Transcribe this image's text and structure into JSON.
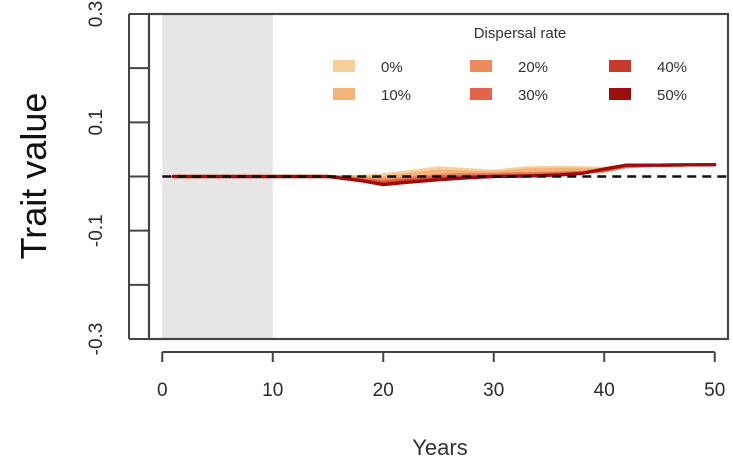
{
  "chart_data": {
    "type": "line",
    "title": "",
    "xlabel": "Years",
    "ylabel": "Trait value",
    "xlim": [
      -1.2,
      51.2
    ],
    "ylim": [
      -0.3,
      0.3
    ],
    "x_ticks": [
      0,
      10,
      20,
      30,
      40,
      50
    ],
    "y_ticks": [
      -0.3,
      -0.2,
      -0.1,
      0.0,
      0.1,
      0.2,
      0.3
    ],
    "y_tick_labels": [
      {
        "value": -0.3,
        "label": "-0.3"
      },
      {
        "value": -0.1,
        "label": "-0.1"
      },
      {
        "value": 0.1,
        "label": "0.1"
      },
      {
        "value": 0.3,
        "label": "0.3"
      }
    ],
    "shaded_region": {
      "x_start": 0,
      "x_end": 10,
      "y_start": -0.3,
      "y_end": 0.3,
      "color": "#e6e6e6"
    },
    "reference_line": {
      "y": 0,
      "style": "dashed",
      "color": "#111111"
    },
    "legend": {
      "title": "Dispersal rate",
      "placement": "top-right",
      "columns": 3
    },
    "series": [
      {
        "name": "0%",
        "color": "#f7cf9a",
        "x": [
          1,
          5,
          10,
          15,
          18,
          20,
          22,
          25,
          28,
          30,
          33,
          36,
          38,
          40,
          42,
          45,
          50
        ],
        "y": [
          0,
          0,
          0,
          0,
          0.0,
          0.003,
          0.008,
          0.016,
          0.012,
          0.01,
          0.016,
          0.017,
          0.016,
          0.015,
          0.02,
          0.021,
          0.022
        ]
      },
      {
        "name": "10%",
        "color": "#f4b27b",
        "x": [
          1,
          5,
          10,
          15,
          18,
          20,
          22,
          25,
          28,
          30,
          33,
          36,
          38,
          40,
          42,
          45,
          50
        ],
        "y": [
          0,
          0,
          0,
          0,
          -0.002,
          -0.002,
          0.003,
          0.01,
          0.008,
          0.007,
          0.012,
          0.013,
          0.013,
          0.013,
          0.019,
          0.021,
          0.022
        ]
      },
      {
        "name": "20%",
        "color": "#ee8a5c",
        "x": [
          1,
          5,
          10,
          15,
          18,
          20,
          22,
          25,
          28,
          30,
          33,
          36,
          38,
          40,
          42,
          45,
          50
        ],
        "y": [
          0,
          0,
          0,
          0,
          -0.004,
          -0.006,
          -0.003,
          0.003,
          0.004,
          0.004,
          0.006,
          0.007,
          0.008,
          0.01,
          0.018,
          0.021,
          0.022
        ]
      },
      {
        "name": "30%",
        "color": "#e2644a",
        "x": [
          1,
          5,
          10,
          15,
          18,
          20,
          22,
          25,
          28,
          30,
          33,
          36,
          38,
          40,
          42,
          45,
          50
        ],
        "y": [
          0,
          0,
          0,
          0,
          -0.006,
          -0.01,
          -0.006,
          -0.001,
          0.001,
          0.002,
          0.003,
          0.005,
          0.007,
          0.012,
          0.02,
          0.021,
          0.022
        ]
      },
      {
        "name": "40%",
        "color": "#c9392c",
        "x": [
          1,
          5,
          10,
          15,
          18,
          20,
          22,
          25,
          28,
          30,
          33,
          36,
          38,
          40,
          42,
          45,
          50
        ],
        "y": [
          0,
          0,
          0,
          0,
          -0.007,
          -0.013,
          -0.009,
          -0.004,
          -0.001,
          0.0,
          0.001,
          0.003,
          0.006,
          0.013,
          0.02,
          0.021,
          0.022
        ]
      },
      {
        "name": "50%",
        "color": "#9c0d0d",
        "x": [
          1,
          5,
          10,
          15,
          18,
          20,
          22,
          25,
          28,
          30,
          33,
          36,
          38,
          40,
          42,
          45,
          50
        ],
        "y": [
          0,
          0,
          0,
          0,
          -0.008,
          -0.015,
          -0.011,
          -0.006,
          -0.002,
          0.0,
          0.001,
          0.003,
          0.006,
          0.014,
          0.021,
          0.021,
          0.022
        ]
      }
    ]
  }
}
